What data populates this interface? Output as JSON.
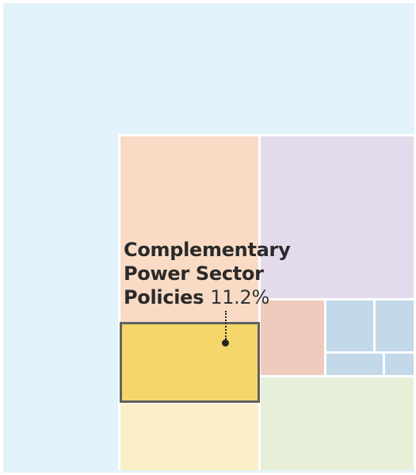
{
  "chart_data": {
    "type": "treemap",
    "highlighted": {
      "label_lines": [
        "Complementary",
        "Power Sector",
        "Policies"
      ],
      "value_text": "11.2%",
      "value": 11.2,
      "color": "#f5d66a"
    },
    "colors": {
      "background": "#e3f3fb",
      "orange": "#f9dbc5",
      "purple": "#e3dbec",
      "salmon": "#eecbbd",
      "blue": "#c3d8e9",
      "green": "#e7efd8",
      "cream": "#fbefc8",
      "highlight_border": "#616161"
    }
  }
}
